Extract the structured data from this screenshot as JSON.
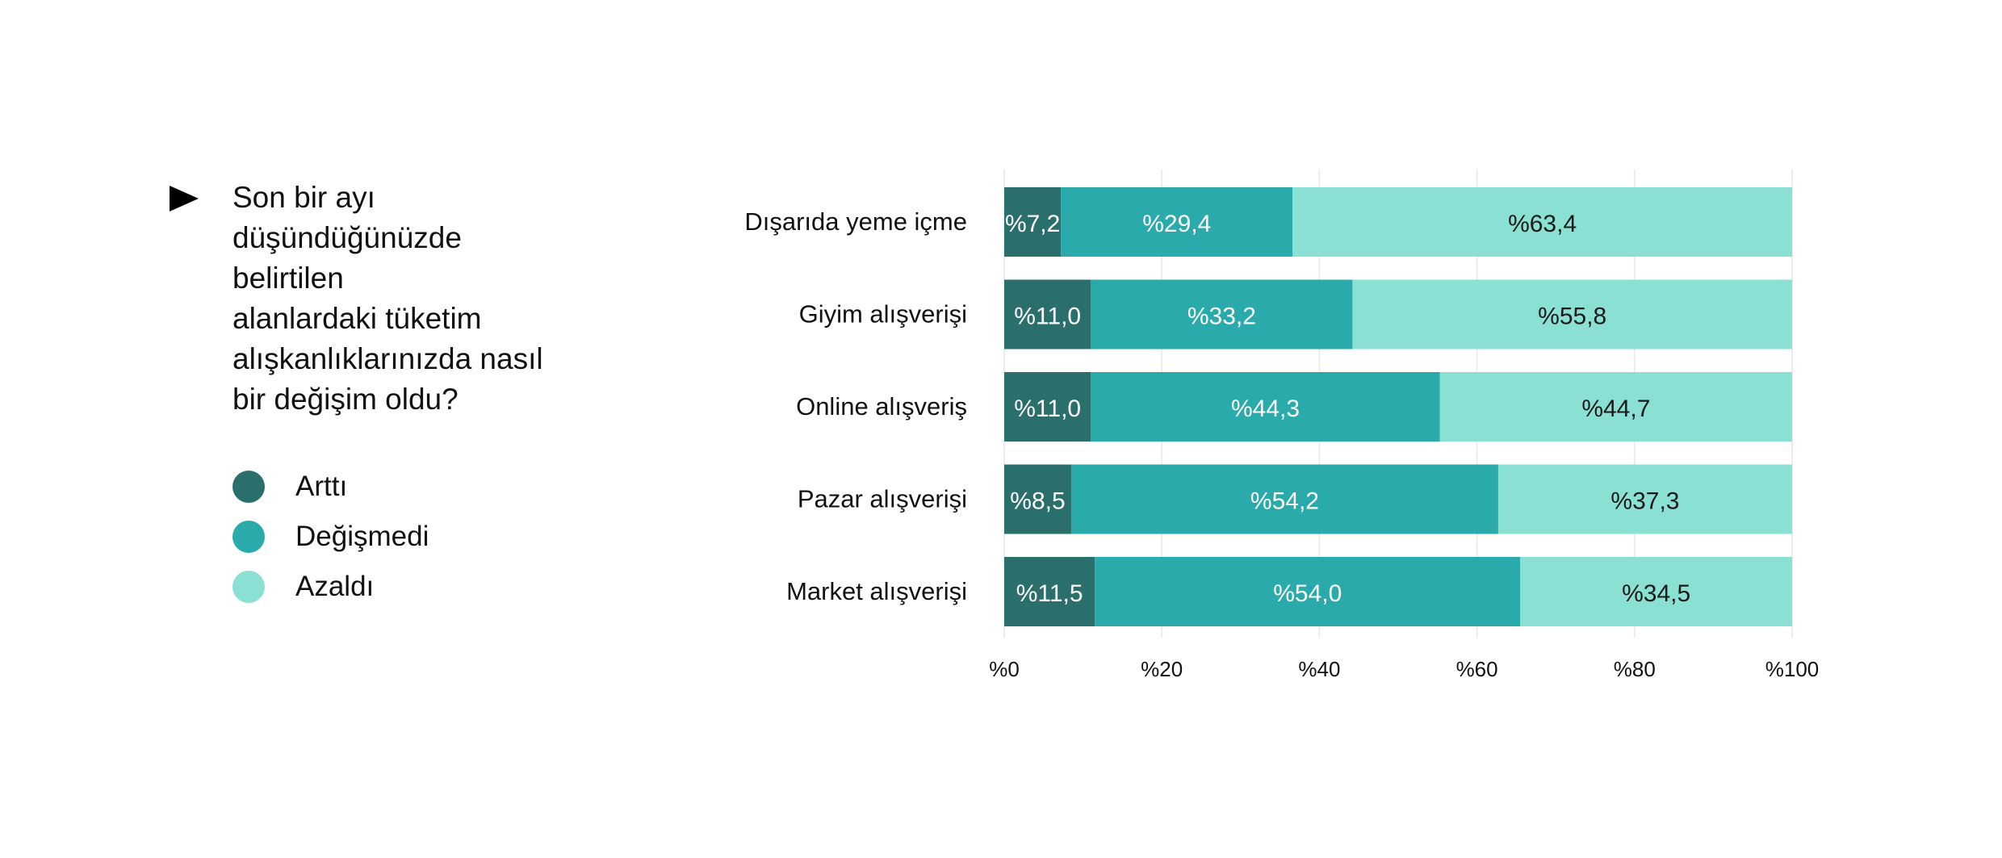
{
  "question": {
    "lines": [
      "Son bir ayı",
      "düşündüğünüzde",
      "belirtilen",
      "alanlardaki tüketim",
      "alışkanlıklarınızda nasıl",
      "bir değişim oldu?"
    ]
  },
  "legend": [
    {
      "label": "Arttı",
      "color": "#2a6f6b"
    },
    {
      "label": "Değişmedi",
      "color": "#2aaaab"
    },
    {
      "label": "Azaldı",
      "color": "#8ae0d3"
    }
  ],
  "chart_data": {
    "type": "bar",
    "orientation": "horizontal",
    "stacked": true,
    "categories": [
      "Dışarıda yeme içme",
      "Giyim alışverişi",
      "Online alışveriş",
      "Pazar alışverişi",
      "Market alışverişi"
    ],
    "series": [
      {
        "name": "Arttı",
        "color": "#2a6f6b",
        "label_color": "#ffffff",
        "values": [
          7.2,
          11.0,
          11.0,
          8.5,
          11.5
        ],
        "labels": [
          "%7,2",
          "%11,0",
          "%11,0",
          "%8,5",
          "%11,5"
        ]
      },
      {
        "name": "Değişmedi",
        "color": "#2aaaab",
        "label_color": "#ffffff",
        "values": [
          29.4,
          33.2,
          44.3,
          54.2,
          54.0
        ],
        "labels": [
          "%29,4",
          "%33,2",
          "%44,3",
          "%54,2",
          "%54,0"
        ]
      },
      {
        "name": "Azaldı",
        "color": "#8ae0d3",
        "label_color": "#1a1a1a",
        "values": [
          63.4,
          55.8,
          44.7,
          37.3,
          34.5
        ],
        "labels": [
          "%63,4",
          "%55,8",
          "%44,7",
          "%37,3",
          "%34,5"
        ]
      }
    ],
    "xlim": [
      0,
      100
    ],
    "xticks": [
      0,
      20,
      40,
      60,
      80,
      100
    ],
    "xtick_labels": [
      "%0",
      "%20",
      "%40",
      "%60",
      "%80",
      "%100"
    ],
    "grid": true,
    "title": "",
    "xlabel": "",
    "ylabel": ""
  }
}
